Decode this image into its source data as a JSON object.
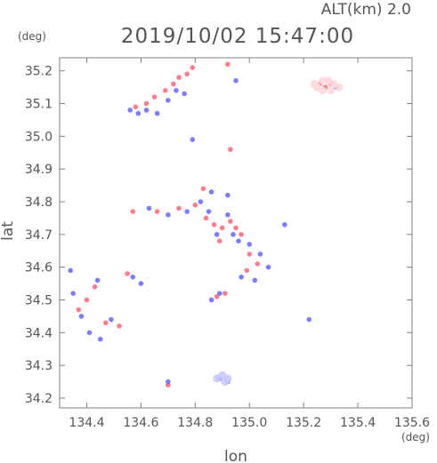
{
  "header": {
    "altitude_label": "ALT(km)  2.0",
    "timestamp": "2019/10/02 15:47:00"
  },
  "colors": {
    "frame": "#808080",
    "text": "#555555",
    "positive": "#ff6f7f",
    "negative": "#6f6fff",
    "light_positive": "#ffd9dc",
    "light_negative": "#c9c9ff"
  },
  "chart_data": {
    "type": "scatter",
    "xlabel": "lon",
    "ylabel": "lat",
    "x_unit": "(deg)",
    "y_unit": "(deg)",
    "xlim": [
      134.3,
      135.6
    ],
    "ylim": [
      34.17,
      35.24
    ],
    "x_ticks": [
      "134.4",
      "134.6",
      "134.8",
      "135.0",
      "135.2",
      "135.4",
      "135.6"
    ],
    "y_ticks": [
      "34.2",
      "34.3",
      "34.4",
      "34.5",
      "34.6",
      "34.7",
      "34.8",
      "34.9",
      "35.0",
      "35.1",
      "35.2"
    ],
    "series": [
      {
        "color_key": "positive",
        "points": [
          [
            134.58,
            35.09
          ],
          [
            134.62,
            35.1
          ],
          [
            134.65,
            35.12
          ],
          [
            134.69,
            35.14
          ],
          [
            134.72,
            35.16
          ],
          [
            134.74,
            35.18
          ],
          [
            134.77,
            35.19
          ],
          [
            134.79,
            35.21
          ],
          [
            134.92,
            35.22
          ],
          [
            134.93,
            34.96
          ],
          [
            134.83,
            34.84
          ],
          [
            134.8,
            34.79
          ],
          [
            134.74,
            34.78
          ],
          [
            134.66,
            34.77
          ],
          [
            134.57,
            34.77
          ],
          [
            134.84,
            34.75
          ],
          [
            134.87,
            34.73
          ],
          [
            134.9,
            34.72
          ],
          [
            134.93,
            34.74
          ],
          [
            134.95,
            34.72
          ],
          [
            134.97,
            34.7
          ],
          [
            134.89,
            34.68
          ],
          [
            135.0,
            34.64
          ],
          [
            135.03,
            34.61
          ],
          [
            134.99,
            34.59
          ],
          [
            134.91,
            34.52
          ],
          [
            134.88,
            34.51
          ],
          [
            134.43,
            34.54
          ],
          [
            134.4,
            34.5
          ],
          [
            134.37,
            34.47
          ],
          [
            134.47,
            34.43
          ],
          [
            134.52,
            34.42
          ],
          [
            134.55,
            34.58
          ],
          [
            134.7,
            34.24
          ],
          [
            135.26,
            35.16
          ],
          [
            135.28,
            35.15
          ],
          [
            135.3,
            35.16
          ]
        ]
      },
      {
        "color_key": "negative",
        "points": [
          [
            134.56,
            35.08
          ],
          [
            134.59,
            35.07
          ],
          [
            134.62,
            35.08
          ],
          [
            134.66,
            35.07
          ],
          [
            134.7,
            35.11
          ],
          [
            134.73,
            35.14
          ],
          [
            134.76,
            35.13
          ],
          [
            134.95,
            35.17
          ],
          [
            134.79,
            34.99
          ],
          [
            134.86,
            34.83
          ],
          [
            134.82,
            34.8
          ],
          [
            134.77,
            34.77
          ],
          [
            134.7,
            34.76
          ],
          [
            134.63,
            34.78
          ],
          [
            134.85,
            34.77
          ],
          [
            134.88,
            34.7
          ],
          [
            134.92,
            34.76
          ],
          [
            134.94,
            34.7
          ],
          [
            134.96,
            34.68
          ],
          [
            135.0,
            34.67
          ],
          [
            135.04,
            34.64
          ],
          [
            134.97,
            34.57
          ],
          [
            135.02,
            34.56
          ],
          [
            135.07,
            34.6
          ],
          [
            135.13,
            34.73
          ],
          [
            134.92,
            34.82
          ],
          [
            134.89,
            34.52
          ],
          [
            134.86,
            34.5
          ],
          [
            134.34,
            34.59
          ],
          [
            134.35,
            34.52
          ],
          [
            134.38,
            34.45
          ],
          [
            134.41,
            34.4
          ],
          [
            134.45,
            34.38
          ],
          [
            134.49,
            34.44
          ],
          [
            134.44,
            34.56
          ],
          [
            134.57,
            34.57
          ],
          [
            134.6,
            34.55
          ],
          [
            135.22,
            34.44
          ],
          [
            134.89,
            34.26
          ],
          [
            134.92,
            34.25
          ],
          [
            134.7,
            34.25
          ],
          [
            135.32,
            35.15
          ]
        ]
      },
      {
        "color_key": "light_positive",
        "points": [
          [
            135.24,
            35.16
          ],
          [
            135.27,
            35.17
          ],
          [
            135.29,
            35.17
          ],
          [
            135.31,
            35.16
          ],
          [
            135.27,
            35.14
          ],
          [
            135.3,
            35.14
          ],
          [
            135.25,
            35.15
          ],
          [
            135.33,
            35.15
          ]
        ]
      },
      {
        "color_key": "light_negative",
        "points": [
          [
            134.88,
            34.26
          ],
          [
            134.9,
            34.27
          ],
          [
            134.92,
            34.26
          ],
          [
            134.91,
            34.25
          ]
        ]
      }
    ]
  }
}
